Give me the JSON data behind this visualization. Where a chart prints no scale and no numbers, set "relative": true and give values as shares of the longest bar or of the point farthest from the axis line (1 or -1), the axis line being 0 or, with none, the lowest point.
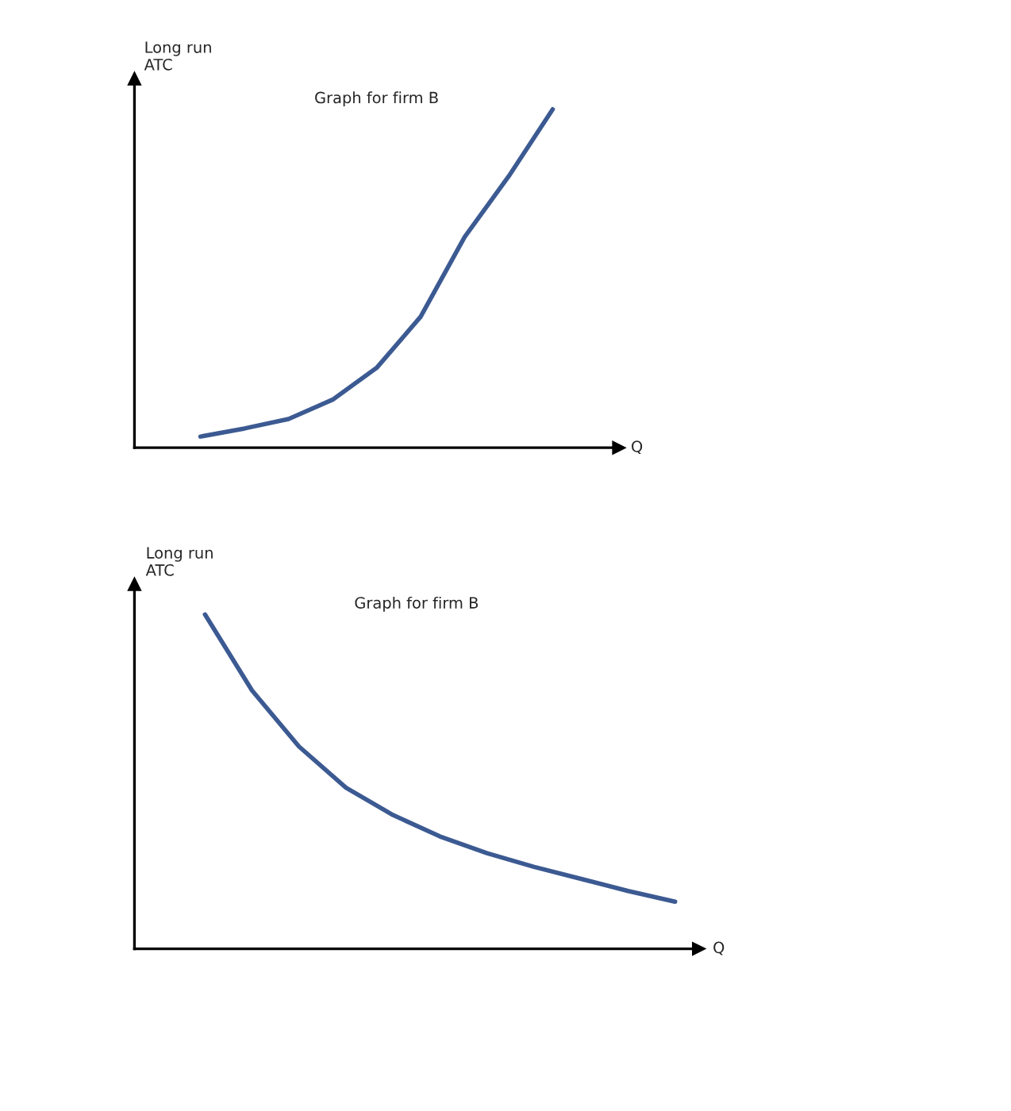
{
  "chart_data": [
    {
      "type": "line",
      "title": "Graph for firm B",
      "xlabel": "Q",
      "ylabel": "Long run\nATC",
      "relative": true,
      "categories": [
        null,
        null,
        null,
        null,
        null,
        null,
        null,
        null,
        null,
        null,
        null
      ],
      "series": [
        {
          "color": "#3c5a92",
          "values": [
            null,
            0.033,
            0.057,
            0.085,
            0.142,
            0.236,
            0.387,
            0.623,
            0.802,
            1.0,
            null
          ]
        }
      ]
    },
    {
      "type": "line",
      "title": "Graph for firm B",
      "xlabel": "Q",
      "ylabel": "Long run\nATC",
      "relative": true,
      "categories": [
        null,
        null,
        null,
        null,
        null,
        null,
        null,
        null,
        null,
        null,
        null,
        null
      ],
      "series": [
        {
          "color": "#3c5a92",
          "values": [
            null,
            1.0,
            0.773,
            0.605,
            0.482,
            0.4,
            0.336,
            0.286,
            0.245,
            0.209,
            0.173,
            0.141
          ]
        }
      ]
    }
  ]
}
